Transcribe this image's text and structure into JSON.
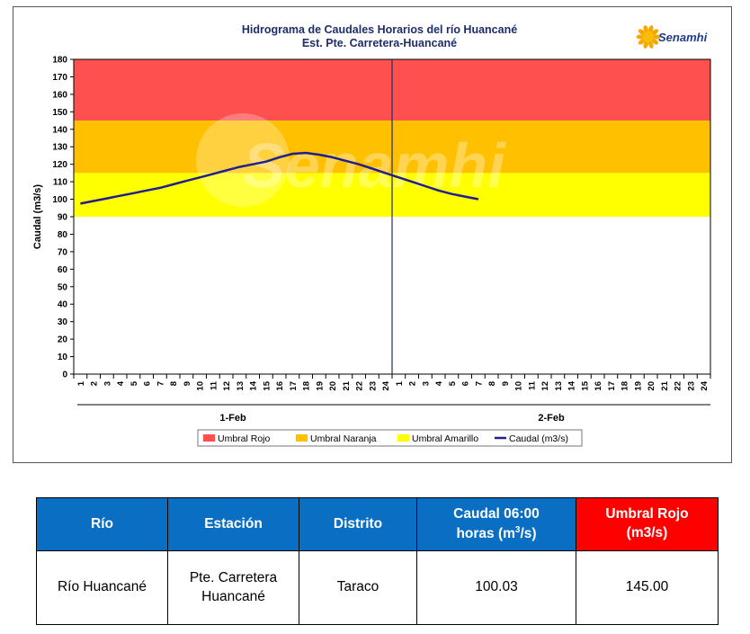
{
  "chart_data": {
    "type": "line",
    "title_lines": [
      "Hidrograma de Caudales Horarios del río Huancané",
      "Est. Pte. Carretera-Huancané"
    ],
    "logo_text": "Senamhi",
    "watermark_text": "Senamhi",
    "ylabel": "Caudal  (m3/s)",
    "ylim": [
      0,
      180
    ],
    "yticks": [
      0,
      10,
      20,
      30,
      40,
      50,
      60,
      70,
      80,
      90,
      100,
      110,
      120,
      130,
      140,
      150,
      160,
      170,
      180
    ],
    "x_tick_labels": [
      "1",
      "2",
      "3",
      "4",
      "5",
      "6",
      "7",
      "8",
      "9",
      "10",
      "11",
      "12",
      "13",
      "14",
      "15",
      "16",
      "17",
      "18",
      "19",
      "20",
      "21",
      "22",
      "23",
      "24",
      "1",
      "2",
      "3",
      "4",
      "5",
      "6",
      "7",
      "8",
      "9",
      "10",
      "11",
      "12",
      "13",
      "14",
      "15",
      "16",
      "17",
      "18",
      "19",
      "20",
      "21",
      "22",
      "23",
      "24"
    ],
    "day_labels": [
      "1-Feb",
      "2-Feb"
    ],
    "thresholds": [
      {
        "name": "Umbral Rojo",
        "from": 145,
        "to": 180,
        "color": "#ff5050"
      },
      {
        "name": "Umbral Naranja",
        "from": 115,
        "to": 145,
        "color": "#ffc000"
      },
      {
        "name": "Umbral Amarillo",
        "from": 90,
        "to": 115,
        "color": "#ffff00"
      }
    ],
    "series": [
      {
        "name": "Caudal (m3/s)",
        "color": "#1f1f8f",
        "x": [
          1,
          2,
          3,
          4,
          5,
          6,
          7,
          8,
          9,
          10,
          11,
          12,
          13,
          14,
          15,
          16,
          17,
          18,
          19,
          20,
          21,
          22,
          23,
          24,
          25,
          26,
          27,
          28,
          29,
          30,
          31
        ],
        "values": [
          97.5,
          99,
          100.5,
          102,
          103.5,
          105,
          106.5,
          108.5,
          110.5,
          112.5,
          114.5,
          116.5,
          118.5,
          120,
          121.5,
          124,
          126,
          126.5,
          125.5,
          124,
          122,
          120,
          117.5,
          115,
          112.5,
          110,
          107.5,
          105,
          103,
          101.5,
          100.03
        ]
      }
    ],
    "legend": [
      "Umbral Rojo",
      "Umbral Naranja",
      "Umbral Amarillo",
      "Caudal (m3/s)"
    ],
    "grid": false,
    "legend_position": "bottom"
  },
  "table": {
    "headers": [
      "Río",
      "Estación",
      "Distrito",
      "Caudal 06:00 horas (m",
      "Umbral Rojo (m3/s)"
    ],
    "caudal_header_line1": "Caudal 06:00",
    "caudal_header_line2_pre": "horas (m",
    "caudal_header_sup": "3",
    "caudal_header_line2_post": "/s)",
    "umbral_header_line1": "Umbral Rojo",
    "umbral_header_line2": "(m3/s)",
    "row": {
      "rio": "Río Huancané",
      "estacion_line1": "Pte. Carretera",
      "estacion_line2": "Huancané",
      "distrito": "Taraco",
      "caudal": "100.03",
      "umbral": "145.00"
    }
  }
}
